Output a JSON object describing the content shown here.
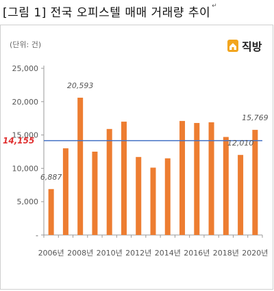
{
  "caption": {
    "text": "[그림 1] 전국 오피스텔 매매 거래량 추이",
    "mark": "↵"
  },
  "unit_label": "(단위: 건)",
  "logo": {
    "text": "직방",
    "icon": "house-logo-icon",
    "color": "#f2a51e"
  },
  "colors": {
    "bar": "#ed7d31",
    "avg_line": "#4472c4",
    "avg_label": "#e03030",
    "axis": "#999999",
    "label": "#555555"
  },
  "chart_data": {
    "type": "bar",
    "categories": [
      "2006년",
      "2007년",
      "2008년",
      "2009년",
      "2010년",
      "2011년",
      "2012년",
      "2013년",
      "2014년",
      "2015년",
      "2016년",
      "2017년",
      "2018년",
      "2019년",
      "2020년"
    ],
    "x_tick_labels": [
      "2006년",
      "2008년",
      "2010년",
      "2012년",
      "2014년",
      "2016년",
      "2018년",
      "2020년"
    ],
    "values": [
      6887,
      13000,
      20593,
      12500,
      15900,
      17000,
      11700,
      10100,
      11500,
      17100,
      16800,
      16900,
      14700,
      12010,
      15769
    ],
    "data_labels": [
      {
        "index": 0,
        "text": "6,887"
      },
      {
        "index": 2,
        "text": "20,593"
      },
      {
        "index": 13,
        "text": "12,010"
      },
      {
        "index": 14,
        "text": "15,769"
      }
    ],
    "ylim": [
      0,
      25000
    ],
    "yticks": [
      0,
      5000,
      10000,
      15000,
      20000,
      25000
    ],
    "ytick_labels": [
      "-",
      "5,000",
      "10,000",
      "15,000",
      "20,000",
      "25,000"
    ],
    "reference_line": {
      "value": 14155,
      "label": "14,155"
    },
    "grid": false,
    "legend": "none"
  }
}
